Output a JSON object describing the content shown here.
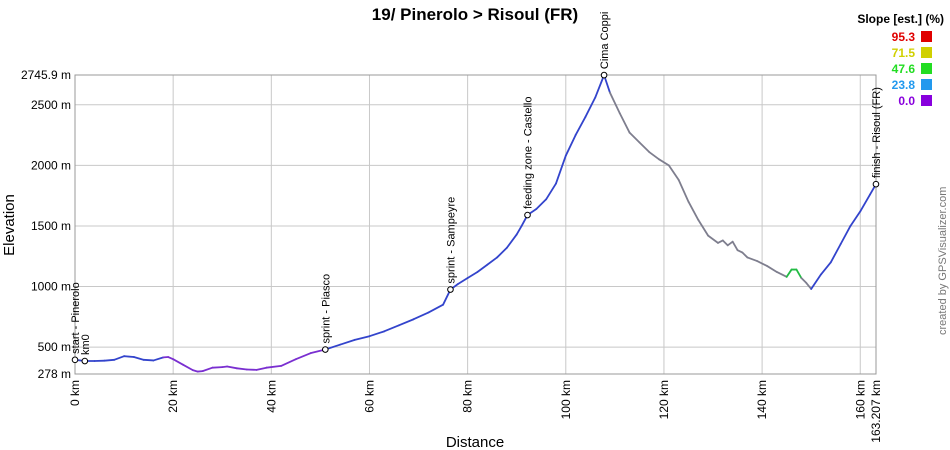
{
  "chart_data": {
    "type": "line",
    "title": "19/ Pinerolo > Risoul (FR)",
    "xlabel": "Distance",
    "ylabel": "Elevation",
    "xlim": [
      0,
      163.207
    ],
    "ylim": [
      278,
      2745.9
    ],
    "x_ticks": [
      {
        "value": 0,
        "label": "0 km"
      },
      {
        "value": 20,
        "label": "20 km"
      },
      {
        "value": 40,
        "label": "40 km"
      },
      {
        "value": 60,
        "label": "60 km"
      },
      {
        "value": 80,
        "label": "80 km"
      },
      {
        "value": 100,
        "label": "100 km"
      },
      {
        "value": 120,
        "label": "120 km"
      },
      {
        "value": 140,
        "label": "140 km"
      },
      {
        "value": 160,
        "label": "160 km"
      },
      {
        "value": 163.207,
        "label": "163.207 km"
      }
    ],
    "y_ticks": [
      {
        "value": 278,
        "label": "278 m"
      },
      {
        "value": 500,
        "label": "500 m"
      },
      {
        "value": 1000,
        "label": "1000 m"
      },
      {
        "value": 1500,
        "label": "1500 m"
      },
      {
        "value": 2000,
        "label": "2000 m"
      },
      {
        "value": 2500,
        "label": "2500 m"
      },
      {
        "value": 2745.9,
        "label": "2745.9 m"
      }
    ],
    "grid": true,
    "series": [
      {
        "x": [
          0,
          2,
          4,
          6,
          8,
          10,
          12,
          14,
          16,
          18,
          19,
          20,
          22,
          24,
          25,
          26,
          28,
          30,
          31,
          33,
          35,
          37,
          39,
          42,
          45,
          48,
          51,
          54,
          57,
          60,
          63,
          66,
          69,
          72,
          75,
          76.5,
          78,
          80,
          82,
          84,
          86,
          88,
          90,
          91,
          92.2,
          94,
          96,
          98,
          100,
          102,
          104,
          106,
          107.8,
          109,
          111,
          113,
          115,
          117,
          119,
          121,
          123,
          125,
          127,
          129,
          131,
          132,
          133,
          134,
          135,
          136,
          137,
          139,
          141,
          143,
          145,
          146,
          147,
          148,
          149,
          150,
          152,
          154,
          156,
          158,
          160,
          162,
          163.2
        ],
        "y": [
          395,
          385,
          385,
          388,
          395,
          425,
          418,
          395,
          390,
          415,
          418,
          400,
          355,
          310,
          298,
          302,
          330,
          335,
          340,
          325,
          315,
          312,
          330,
          345,
          400,
          450,
          480,
          520,
          560,
          590,
          630,
          680,
          730,
          785,
          850,
          975,
          1020,
          1070,
          1120,
          1180,
          1240,
          1320,
          1430,
          1500,
          1590,
          1640,
          1720,
          1850,
          2080,
          2250,
          2400,
          2560,
          2745,
          2600,
          2430,
          2270,
          2190,
          2110,
          2050,
          2000,
          1880,
          1700,
          1550,
          1420,
          1360,
          1380,
          1340,
          1370,
          1300,
          1280,
          1240,
          1210,
          1170,
          1120,
          1080,
          1140,
          1140,
          1070,
          1030,
          980,
          1100,
          1200,
          1350,
          1500,
          1620,
          1760,
          1845
        ]
      }
    ],
    "waypoints": [
      {
        "x": 0,
        "y": 395,
        "label": "start - Pinerolo"
      },
      {
        "x": 2,
        "y": 385,
        "label": "km0"
      },
      {
        "x": 51,
        "y": 480,
        "label": "sprint - Piasco"
      },
      {
        "x": 76.5,
        "y": 975,
        "label": "sprint - Sampeyre"
      },
      {
        "x": 92.2,
        "y": 1590,
        "label": "feeding zone - Castello"
      },
      {
        "x": 107.8,
        "y": 2745,
        "label": "Cima Coppi"
      },
      {
        "x": 163.2,
        "y": 1845,
        "label": "finish - Risoul (FR)"
      }
    ],
    "legend": {
      "title": "Slope [est.] (%)",
      "placement": "top-right",
      "entries": [
        {
          "value": "95.3",
          "color": "#e00000"
        },
        {
          "value": "71.5",
          "color": "#d0d000"
        },
        {
          "value": "47.6",
          "color": "#22dd22"
        },
        {
          "value": "23.8",
          "color": "#2299ee"
        },
        {
          "value": "0.0",
          "color": "#8800dd"
        }
      ]
    },
    "colors": {
      "line_primary": "#3344cc",
      "line_purple": "#7a2fd0",
      "line_gray": "#7e7e8e",
      "line_green": "#22bb44",
      "grid": "#c8c8c8"
    },
    "credit": "created by GPSVisualizer.com"
  }
}
